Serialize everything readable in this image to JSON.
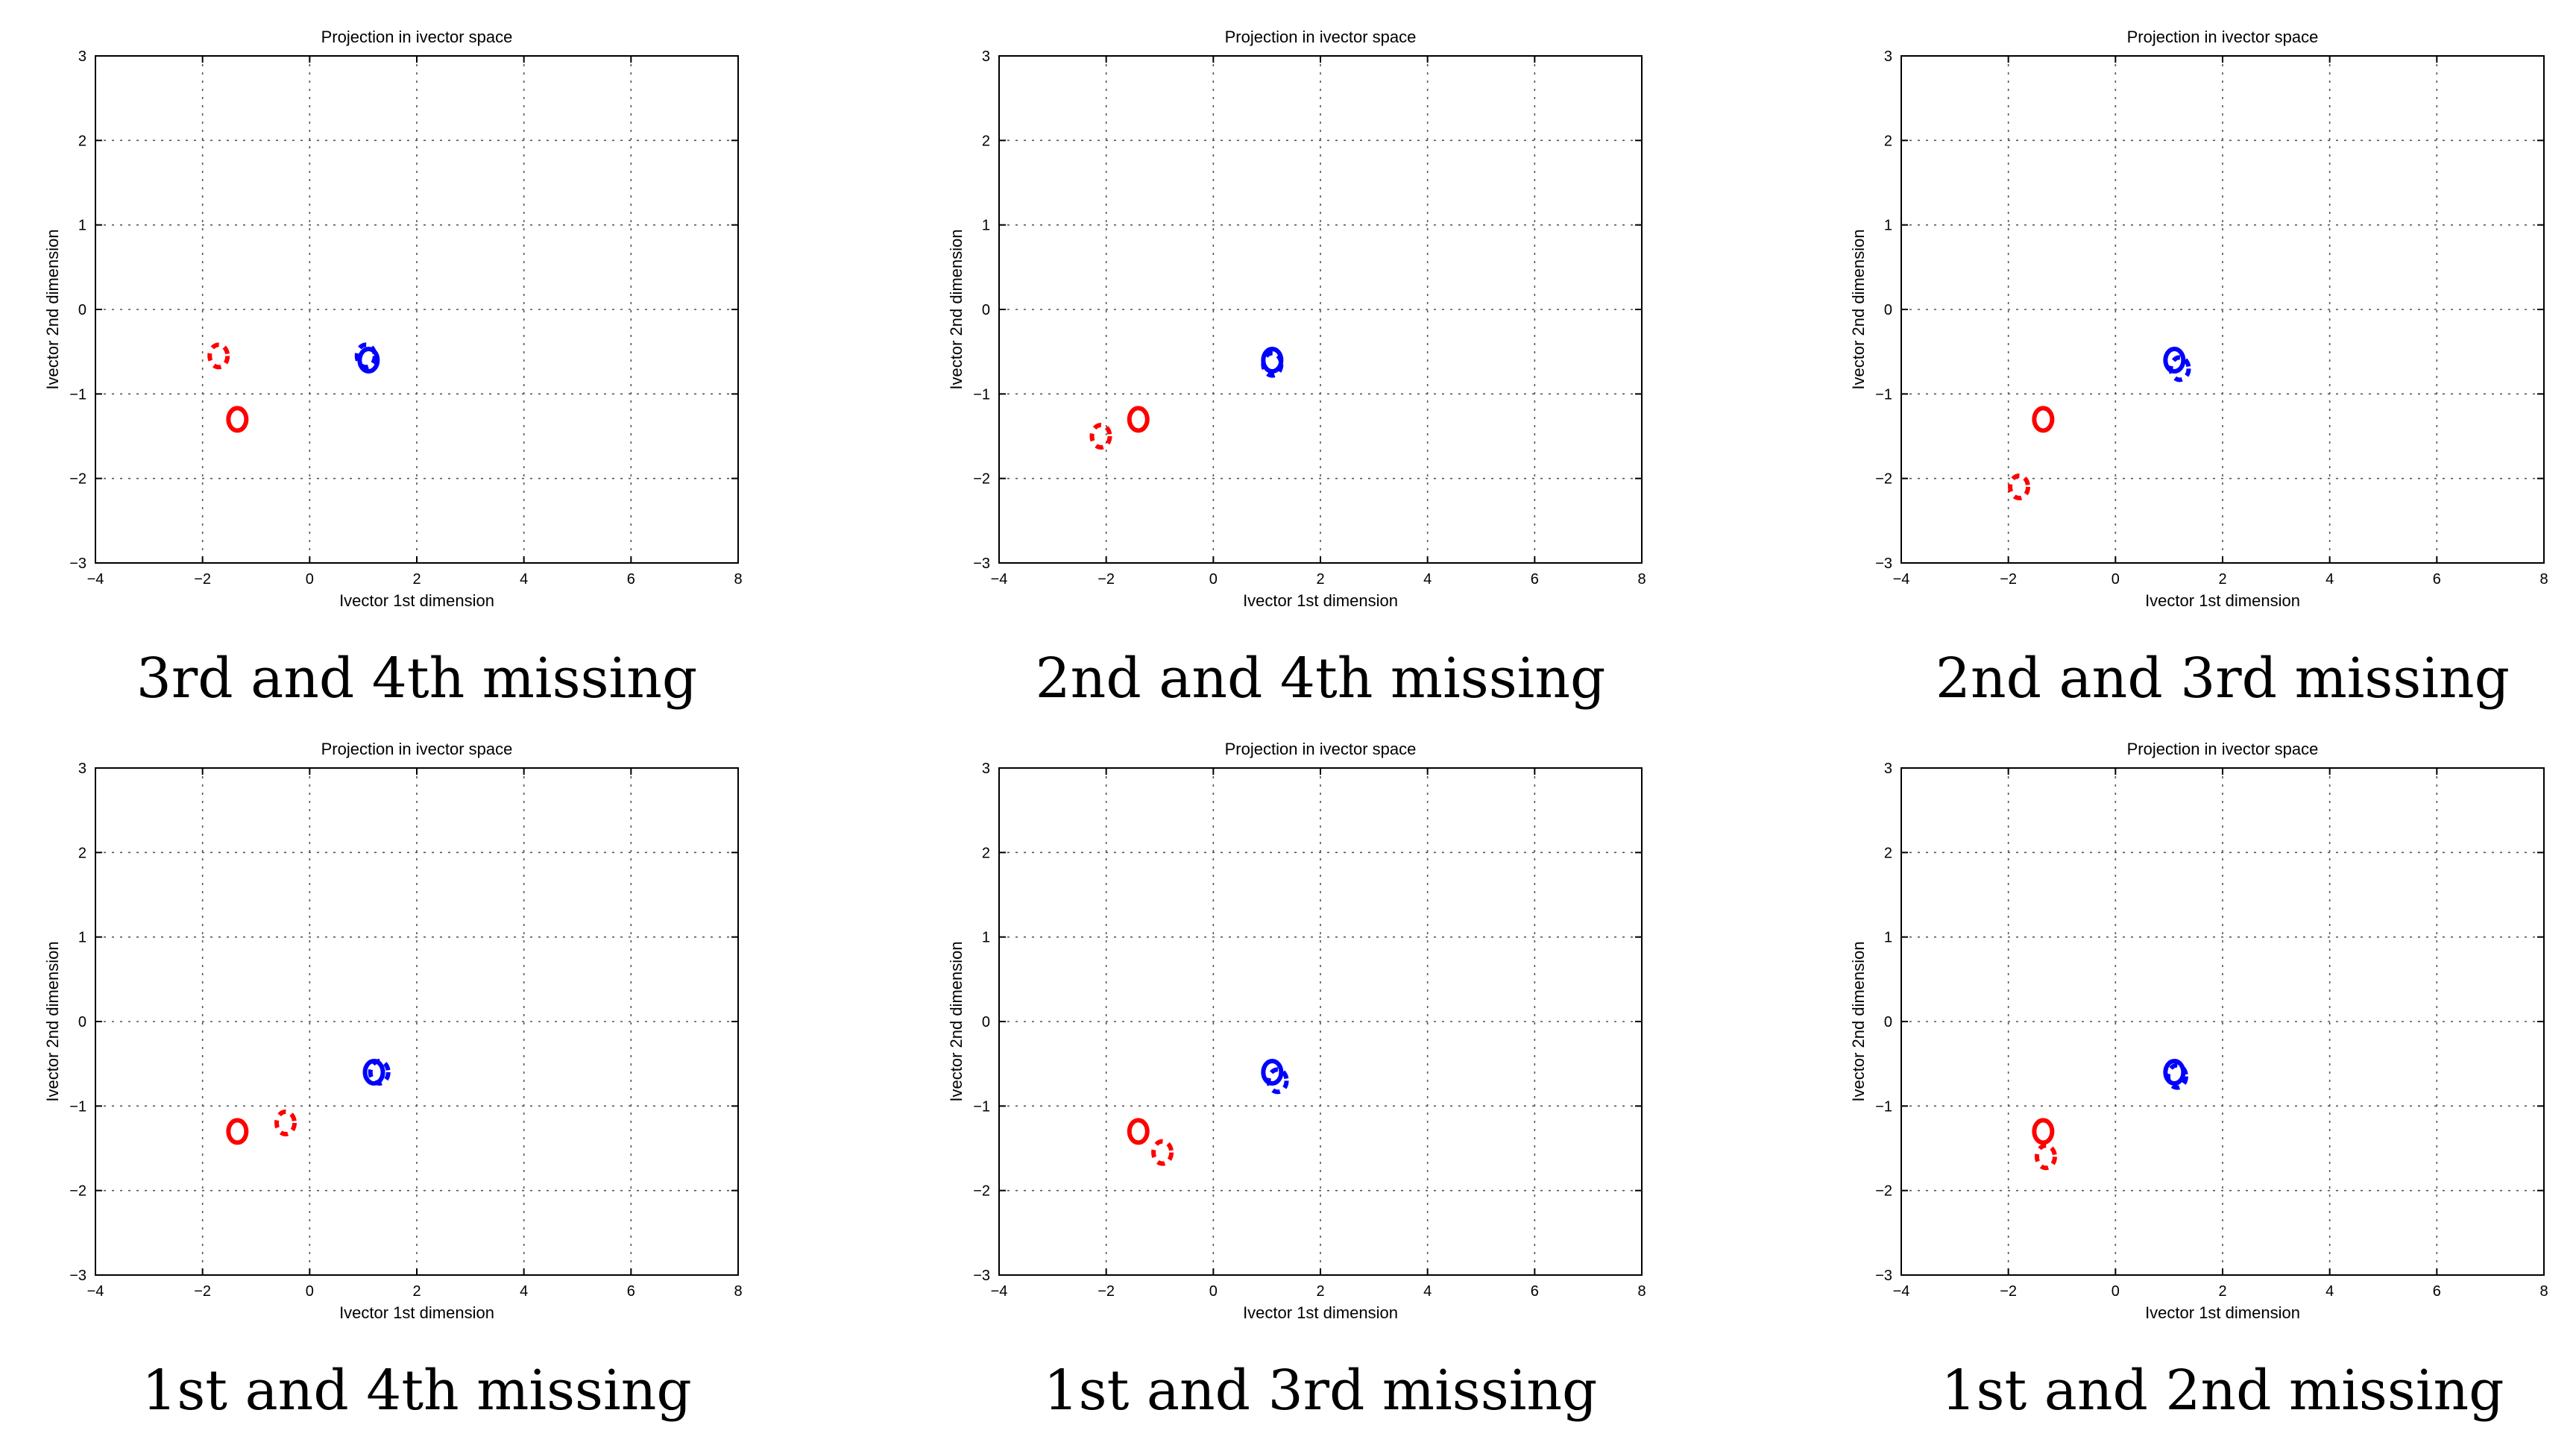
{
  "colors": {
    "class_a": "#0000ff",
    "class_b": "#ff0000"
  },
  "chart_data": [
    {
      "type": "scatter",
      "title": "Projection in ivector space",
      "xlabel": "Ivector 1st dimension",
      "ylabel": "Ivector 2nd dimension",
      "xlim": [
        -4,
        8
      ],
      "ylim": [
        -3,
        3
      ],
      "xticks": [
        -4,
        -2,
        0,
        2,
        4,
        6,
        8
      ],
      "yticks": [
        -3,
        -2,
        -1,
        0,
        1,
        2,
        3
      ],
      "grid": true,
      "caption": "3rd and 4th missing",
      "series": [
        {
          "name": "blue-solid",
          "color": "#0000ff",
          "style": "solid",
          "points": [
            [
              1.1,
              -0.6
            ]
          ]
        },
        {
          "name": "blue-dashed",
          "color": "#0000ff",
          "style": "dashed",
          "points": [
            [
              1.05,
              -0.55
            ]
          ]
        },
        {
          "name": "red-solid",
          "color": "#ff0000",
          "style": "solid",
          "points": [
            [
              -1.35,
              -1.3
            ]
          ]
        },
        {
          "name": "red-dashed",
          "color": "#ff0000",
          "style": "dashed",
          "points": [
            [
              -1.7,
              -0.55
            ]
          ]
        }
      ]
    },
    {
      "type": "scatter",
      "title": "Projection in ivector space",
      "xlabel": "Ivector 1st dimension",
      "ylabel": "Ivector 2nd dimension",
      "xlim": [
        -4,
        8
      ],
      "ylim": [
        -3,
        3
      ],
      "xticks": [
        -4,
        -2,
        0,
        2,
        4,
        6,
        8
      ],
      "yticks": [
        -3,
        -2,
        -1,
        0,
        1,
        2,
        3
      ],
      "grid": true,
      "caption": "2nd and 4th missing",
      "series": [
        {
          "name": "blue-solid",
          "color": "#0000ff",
          "style": "solid",
          "points": [
            [
              1.1,
              -0.6
            ]
          ]
        },
        {
          "name": "blue-dashed",
          "color": "#0000ff",
          "style": "dashed",
          "points": [
            [
              1.1,
              -0.65
            ]
          ]
        },
        {
          "name": "red-solid",
          "color": "#ff0000",
          "style": "solid",
          "points": [
            [
              -1.4,
              -1.3
            ]
          ]
        },
        {
          "name": "red-dashed",
          "color": "#ff0000",
          "style": "dashed",
          "points": [
            [
              -2.1,
              -1.5
            ]
          ]
        }
      ]
    },
    {
      "type": "scatter",
      "title": "Projection in ivector space",
      "xlabel": "Ivector 1st dimension",
      "ylabel": "Ivector 2nd dimension",
      "xlim": [
        -4,
        8
      ],
      "ylim": [
        -3,
        3
      ],
      "xticks": [
        -4,
        -2,
        0,
        2,
        4,
        6,
        8
      ],
      "yticks": [
        -3,
        -2,
        -1,
        0,
        1,
        2,
        3
      ],
      "grid": true,
      "caption": "2nd and 3rd missing",
      "series": [
        {
          "name": "blue-solid",
          "color": "#0000ff",
          "style": "solid",
          "points": [
            [
              1.1,
              -0.6
            ]
          ]
        },
        {
          "name": "blue-dashed",
          "color": "#0000ff",
          "style": "dashed",
          "points": [
            [
              1.2,
              -0.7
            ]
          ]
        },
        {
          "name": "red-solid",
          "color": "#ff0000",
          "style": "solid",
          "points": [
            [
              -1.35,
              -1.3
            ]
          ]
        },
        {
          "name": "red-dashed",
          "color": "#ff0000",
          "style": "dashed",
          "points": [
            [
              -1.8,
              -2.1
            ]
          ]
        }
      ]
    },
    {
      "type": "scatter",
      "title": "Projection in ivector space",
      "xlabel": "Ivector 1st dimension",
      "ylabel": "Ivector 2nd dimension",
      "xlim": [
        -4,
        8
      ],
      "ylim": [
        -3,
        3
      ],
      "xticks": [
        -4,
        -2,
        0,
        2,
        4,
        6,
        8
      ],
      "yticks": [
        -3,
        -2,
        -1,
        0,
        1,
        2,
        3
      ],
      "grid": true,
      "caption": "1st and 4th missing",
      "series": [
        {
          "name": "blue-solid",
          "color": "#0000ff",
          "style": "solid",
          "points": [
            [
              1.2,
              -0.6
            ]
          ]
        },
        {
          "name": "blue-dashed",
          "color": "#0000ff",
          "style": "dashed",
          "points": [
            [
              1.3,
              -0.6
            ]
          ]
        },
        {
          "name": "red-solid",
          "color": "#ff0000",
          "style": "solid",
          "points": [
            [
              -1.35,
              -1.3
            ]
          ]
        },
        {
          "name": "red-dashed",
          "color": "#ff0000",
          "style": "dashed",
          "points": [
            [
              -0.45,
              -1.2
            ]
          ]
        }
      ]
    },
    {
      "type": "scatter",
      "title": "Projection in ivector space",
      "xlabel": "Ivector 1st dimension",
      "ylabel": "Ivector 2nd dimension",
      "xlim": [
        -4,
        8
      ],
      "ylim": [
        -3,
        3
      ],
      "xticks": [
        -4,
        -2,
        0,
        2,
        4,
        6,
        8
      ],
      "yticks": [
        -3,
        -2,
        -1,
        0,
        1,
        2,
        3
      ],
      "grid": true,
      "caption": "1st and 3rd missing",
      "series": [
        {
          "name": "blue-solid",
          "color": "#0000ff",
          "style": "solid",
          "points": [
            [
              1.1,
              -0.6
            ]
          ]
        },
        {
          "name": "blue-dashed",
          "color": "#0000ff",
          "style": "dashed",
          "points": [
            [
              1.2,
              -0.7
            ]
          ]
        },
        {
          "name": "red-solid",
          "color": "#ff0000",
          "style": "solid",
          "points": [
            [
              -1.4,
              -1.3
            ]
          ]
        },
        {
          "name": "red-dashed",
          "color": "#ff0000",
          "style": "dashed",
          "points": [
            [
              -0.95,
              -1.55
            ]
          ]
        }
      ]
    },
    {
      "type": "scatter",
      "title": "Projection in ivector space",
      "xlabel": "Ivector 1st dimension",
      "ylabel": "Ivector 2nd dimension",
      "xlim": [
        -4,
        8
      ],
      "ylim": [
        -3,
        3
      ],
      "xticks": [
        -4,
        -2,
        0,
        2,
        4,
        6,
        8
      ],
      "yticks": [
        -3,
        -2,
        -1,
        0,
        1,
        2,
        3
      ],
      "grid": true,
      "caption": "1st and 2nd missing",
      "series": [
        {
          "name": "blue-solid",
          "color": "#0000ff",
          "style": "solid",
          "points": [
            [
              1.1,
              -0.6
            ]
          ]
        },
        {
          "name": "blue-dashed",
          "color": "#0000ff",
          "style": "dashed",
          "points": [
            [
              1.15,
              -0.65
            ]
          ]
        },
        {
          "name": "red-solid",
          "color": "#ff0000",
          "style": "solid",
          "points": [
            [
              -1.35,
              -1.3
            ]
          ]
        },
        {
          "name": "red-dashed",
          "color": "#ff0000",
          "style": "dashed",
          "points": [
            [
              -1.3,
              -1.6
            ]
          ]
        }
      ]
    }
  ]
}
